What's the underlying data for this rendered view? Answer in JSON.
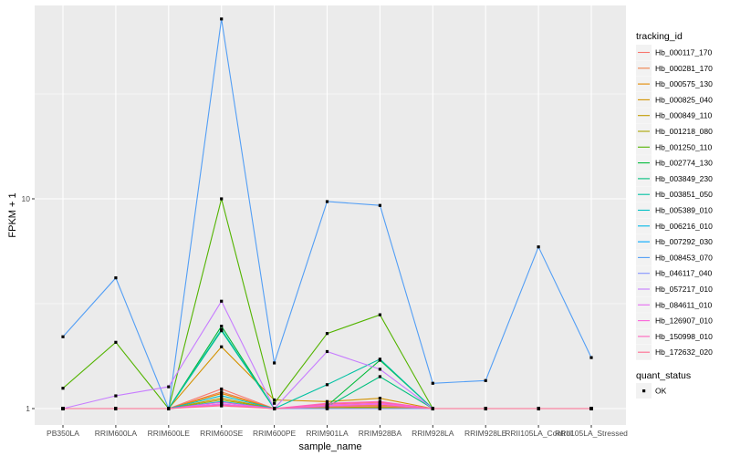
{
  "chart_data": {
    "type": "line",
    "xlabel": "sample_name",
    "ylabel": "FPKM + 1",
    "y_scale": "log10",
    "y_ticks": [
      1,
      10
    ],
    "grid": true,
    "legend_position": "right",
    "categories": [
      "PB350LA",
      "RRIM600LA",
      "RRIM600LE",
      "RRIM600SE",
      "RRIM600PE",
      "RRIM901LA",
      "RRIM928BA",
      "RRIM928LA",
      "RRIM928LE",
      "RRII105LA_Control",
      "RRII105LA_Stressed"
    ],
    "legend_title": "tracking_id",
    "series": [
      {
        "name": "Hb_000117_170",
        "color": "#F8766D",
        "values": [
          1.0,
          1.0,
          1.0,
          1.24,
          1.0,
          1.05,
          1.07,
          1.0,
          1.0,
          1.0,
          1.0
        ]
      },
      {
        "name": "Hb_000281_170",
        "color": "#EF7F49",
        "values": [
          1.0,
          1.0,
          1.0,
          1.2,
          1.0,
          1.03,
          1.04,
          1.0,
          1.0,
          1.0,
          1.0
        ]
      },
      {
        "name": "Hb_000575_130",
        "color": "#E38900",
        "values": [
          1.0,
          1.0,
          1.0,
          1.18,
          1.0,
          1.02,
          1.03,
          1.0,
          1.0,
          1.0,
          1.0
        ]
      },
      {
        "name": "Hb_000825_040",
        "color": "#D39200",
        "values": [
          1.0,
          1.0,
          1.0,
          1.97,
          1.1,
          1.08,
          1.12,
          1.0,
          1.0,
          1.0,
          1.0
        ]
      },
      {
        "name": "Hb_000849_110",
        "color": "#C09B00",
        "values": [
          1.0,
          1.0,
          1.0,
          1.12,
          1.0,
          1.01,
          1.02,
          1.0,
          1.0,
          1.0,
          1.0
        ]
      },
      {
        "name": "Hb_001218_080",
        "color": "#A8A400",
        "values": [
          1.0,
          1.0,
          1.0,
          1.1,
          1.0,
          1.01,
          1.01,
          1.0,
          1.0,
          1.0,
          1.0
        ]
      },
      {
        "name": "Hb_001250_110",
        "color": "#53B400",
        "values": [
          1.25,
          2.07,
          1.0,
          10.0,
          1.06,
          2.28,
          2.8,
          1.0,
          1.0,
          1.0,
          1.0
        ]
      },
      {
        "name": "Hb_002774_130",
        "color": "#00BA38",
        "values": [
          1.0,
          1.0,
          1.0,
          2.47,
          1.0,
          1.03,
          1.7,
          1.0,
          1.0,
          1.0,
          1.0
        ]
      },
      {
        "name": "Hb_003849_230",
        "color": "#00BF7D",
        "values": [
          1.0,
          1.0,
          1.0,
          2.35,
          1.0,
          1.02,
          1.42,
          1.0,
          1.0,
          1.0,
          1.0
        ]
      },
      {
        "name": "Hb_003851_050",
        "color": "#00C1A3",
        "values": [
          1.0,
          1.0,
          1.0,
          2.38,
          1.0,
          1.3,
          1.72,
          1.0,
          1.0,
          1.0,
          1.0
        ]
      },
      {
        "name": "Hb_005389_010",
        "color": "#00BFC4",
        "values": [
          1.0,
          1.0,
          1.0,
          1.15,
          1.0,
          1.0,
          1.0,
          1.0,
          1.0,
          1.0,
          1.0
        ]
      },
      {
        "name": "Hb_006216_010",
        "color": "#00B8E7",
        "values": [
          1.0,
          1.0,
          1.0,
          1.08,
          1.0,
          1.0,
          1.0,
          1.0,
          1.0,
          1.0,
          1.0
        ]
      },
      {
        "name": "Hb_007292_030",
        "color": "#00A9FF",
        "values": [
          1.0,
          1.0,
          1.0,
          1.05,
          1.0,
          1.0,
          1.0,
          1.0,
          1.0,
          1.0,
          1.0
        ]
      },
      {
        "name": "Hb_008453_070",
        "color": "#529EF5",
        "values": [
          2.2,
          4.2,
          1.0,
          72.0,
          1.65,
          9.7,
          9.3,
          1.32,
          1.36,
          5.9,
          1.75
        ]
      },
      {
        "name": "Hb_046117_040",
        "color": "#8494FF",
        "values": [
          1.0,
          1.0,
          1.0,
          1.05,
          1.0,
          1.0,
          1.0,
          1.0,
          1.0,
          1.0,
          1.0
        ]
      },
      {
        "name": "Hb_057217_010",
        "color": "#C77CFF",
        "values": [
          1.0,
          1.15,
          1.27,
          3.25,
          1.0,
          1.87,
          1.54,
          1.0,
          1.0,
          1.0,
          1.0
        ]
      },
      {
        "name": "Hb_084611_010",
        "color": "#E76BF3",
        "values": [
          1.0,
          1.0,
          1.0,
          1.05,
          1.0,
          1.03,
          1.05,
          1.0,
          1.0,
          1.0,
          1.0
        ]
      },
      {
        "name": "Hb_126907_010",
        "color": "#FA62DB",
        "values": [
          1.0,
          1.0,
          1.0,
          1.07,
          1.0,
          1.04,
          1.06,
          1.0,
          1.0,
          1.0,
          1.0
        ]
      },
      {
        "name": "Hb_150998_010",
        "color": "#FF62BC",
        "values": [
          1.0,
          1.0,
          1.0,
          1.04,
          1.0,
          1.06,
          1.08,
          1.0,
          1.0,
          1.0,
          1.0
        ]
      },
      {
        "name": "Hb_172632_020",
        "color": "#FF6C91",
        "values": [
          1.0,
          1.0,
          1.0,
          1.03,
          1.0,
          1.02,
          1.03,
          1.0,
          1.0,
          1.0,
          1.0
        ]
      }
    ],
    "shape_legend_title": "quant_status",
    "shape_legend_items": [
      "OK"
    ],
    "panel_color": "#EBEBEB",
    "grid_color": "#FFFFFF",
    "point_color": "#000000"
  }
}
